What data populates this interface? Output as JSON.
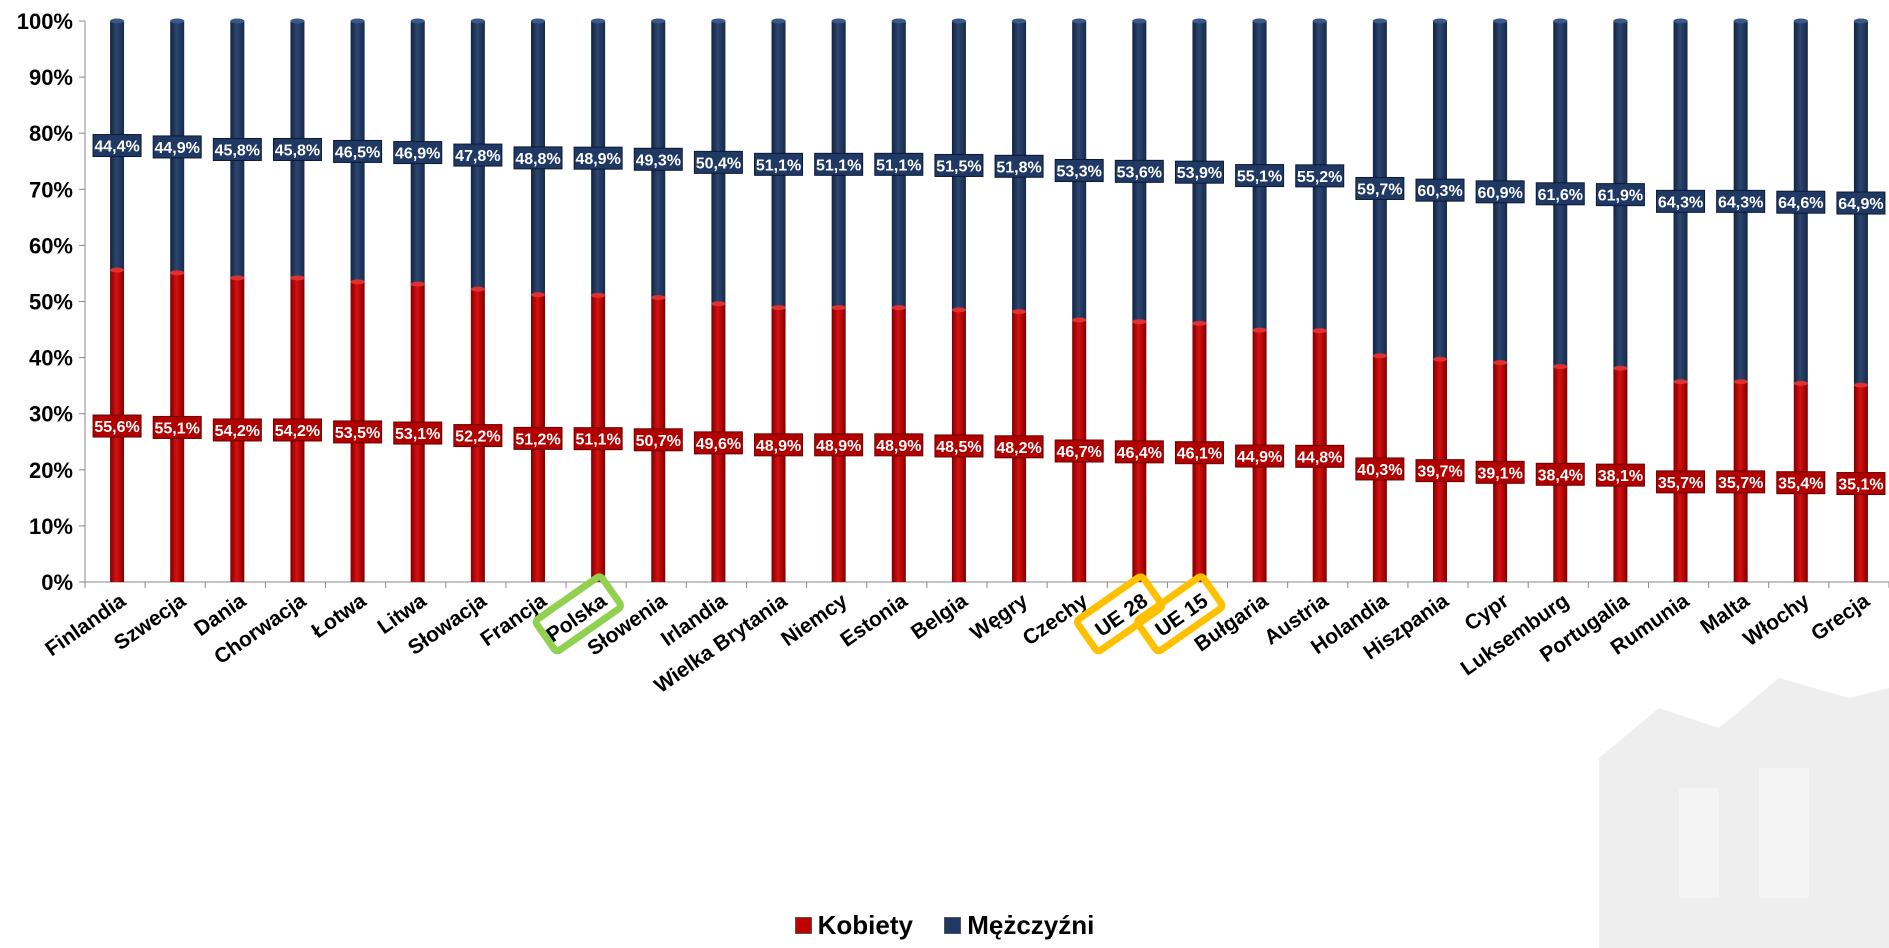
{
  "chart_data": {
    "type": "bar",
    "stacked": true,
    "percent": true,
    "categories": [
      "Finlandia",
      "Szwecja",
      "Dania",
      "Chorwacja",
      "Łotwa",
      "Litwa",
      "Słowacja",
      "Francja",
      "Polska",
      "Słowenia",
      "Irlandia",
      "Wielka Brytania",
      "Niemcy",
      "Estonia",
      "Belgia",
      "Węgry",
      "Czechy",
      "UE 28",
      "UE 15",
      "Bułgaria",
      "Austria",
      "Holandia",
      "Hiszpania",
      "Cypr",
      "Luksemburg",
      "Portugalia",
      "Rumunia",
      "Malta",
      "Włochy",
      "Grecja"
    ],
    "series": [
      {
        "name": "Kobiety",
        "color": "#c00000",
        "values": [
          55.6,
          55.1,
          54.2,
          54.2,
          53.5,
          53.1,
          52.2,
          51.2,
          51.1,
          50.7,
          49.6,
          48.9,
          48.9,
          48.9,
          48.5,
          48.2,
          46.7,
          46.4,
          46.1,
          44.9,
          44.8,
          40.3,
          39.7,
          39.1,
          38.4,
          38.1,
          35.7,
          35.7,
          35.4,
          35.1
        ],
        "labels": [
          "55,6%",
          "55,1%",
          "54,2%",
          "54,2%",
          "53,5%",
          "53,1%",
          "52,2%",
          "51,2%",
          "51,1%",
          "50,7%",
          "49,6%",
          "48,9%",
          "48,9%",
          "48,9%",
          "48,5%",
          "48,2%",
          "46,7%",
          "46,4%",
          "46,1%",
          "44,9%",
          "44,8%",
          "40,3%",
          "39,7%",
          "39,1%",
          "38,4%",
          "38,1%",
          "35,7%",
          "35,7%",
          "35,4%",
          "35,1%"
        ]
      },
      {
        "name": "Mężczyźni",
        "color": "#1f3864",
        "values": [
          44.4,
          44.9,
          45.8,
          45.8,
          46.5,
          46.9,
          47.8,
          48.8,
          48.9,
          49.3,
          50.4,
          51.1,
          51.1,
          51.1,
          51.5,
          51.8,
          53.3,
          53.6,
          53.9,
          55.1,
          55.2,
          59.7,
          60.3,
          60.9,
          61.6,
          61.9,
          64.3,
          64.3,
          64.6,
          64.9
        ],
        "labels": [
          "44,4%",
          "44,9%",
          "45,8%",
          "45,8%",
          "46,5%",
          "46,9%",
          "47,8%",
          "48,8%",
          "48,9%",
          "49,3%",
          "50,4%",
          "51,1%",
          "51,1%",
          "51,1%",
          "51,5%",
          "51,8%",
          "53,3%",
          "53,6%",
          "53,9%",
          "55,1%",
          "55,2%",
          "59,7%",
          "60,3%",
          "60,9%",
          "61,6%",
          "61,9%",
          "64,3%",
          "64,3%",
          "64,6%",
          "64,9%"
        ]
      }
    ],
    "y_ticks": [
      "0%",
      "10%",
      "20%",
      "30%",
      "40%",
      "50%",
      "60%",
      "70%",
      "80%",
      "90%",
      "100%"
    ],
    "ylim": [
      0,
      100
    ],
    "legend_position": "bottom",
    "highlights": [
      {
        "category": "Polska",
        "color": "#92d050"
      },
      {
        "category": "UE 28",
        "color": "#ffc000"
      },
      {
        "category": "UE 15",
        "color": "#ffc000"
      }
    ]
  }
}
